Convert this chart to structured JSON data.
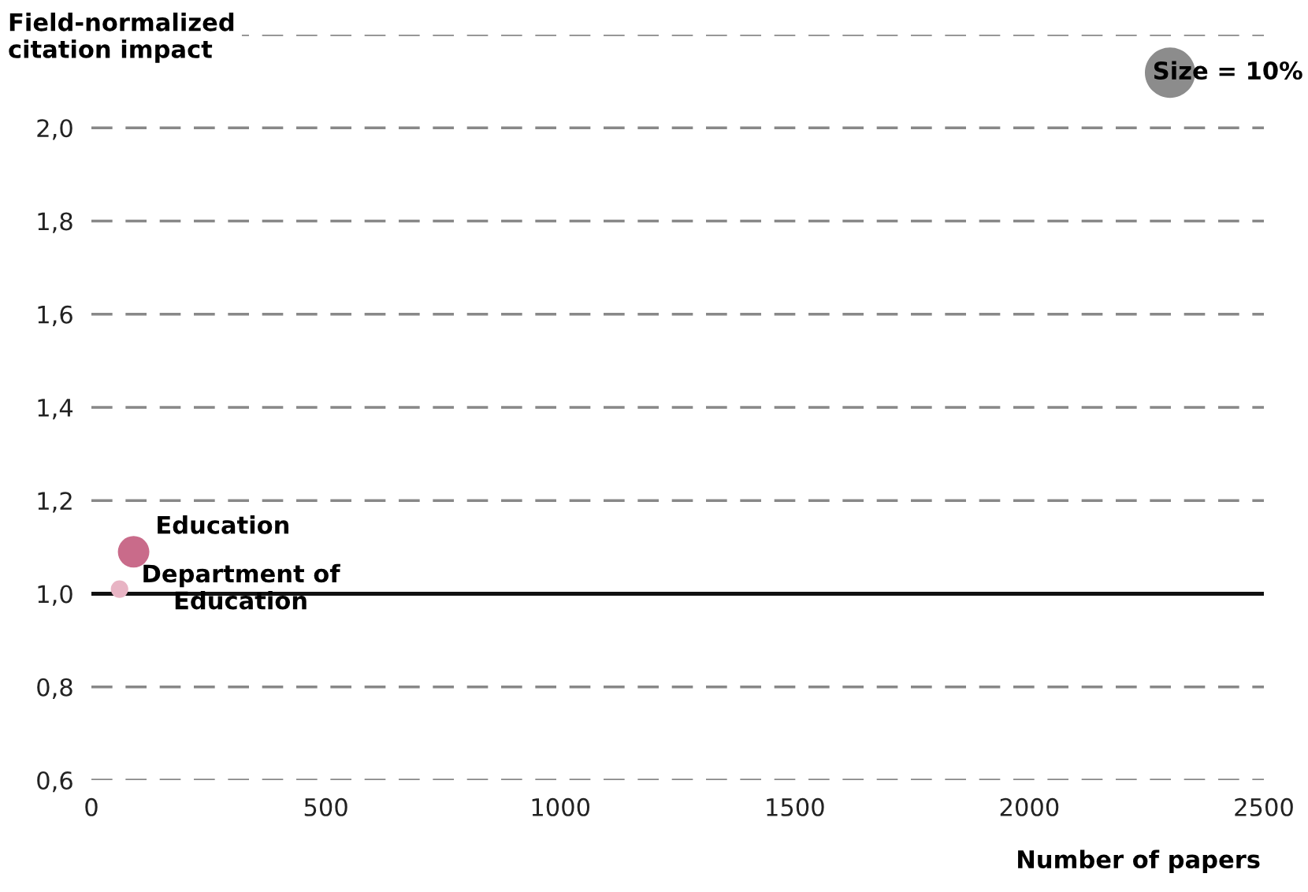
{
  "chart_data": {
    "type": "bubble",
    "xlabel": "Number of papers",
    "ylabel": "Field-normalized\ncitation impact",
    "series": [
      {
        "name": "Education",
        "color": "#c96b8a",
        "x": [
          90
        ],
        "values": [
          1.09
        ],
        "sizes": [
          3.9
        ]
      },
      {
        "name": "Department of\nEducation",
        "color": "#e8b4c4",
        "x": [
          60
        ],
        "values": [
          1.01
        ],
        "sizes": [
          1.2
        ]
      }
    ],
    "size_legend": [
      {
        "value": 10,
        "label": "Size = 10%"
      }
    ],
    "xlim": [
      0,
      2500
    ],
    "xticks": [
      0,
      500,
      1000,
      1500,
      2000,
      2500
    ],
    "ylim": [
      0.6,
      2.2
    ],
    "yticks": [
      {
        "value": 0.6,
        "label": "0,6"
      },
      {
        "value": 0.8,
        "label": "0,8"
      },
      {
        "value": 1.0,
        "label": "1,0"
      },
      {
        "value": 1.2,
        "label": "1,2"
      },
      {
        "value": 1.4,
        "label": "1,4"
      },
      {
        "value": 1.6,
        "label": "1,6"
      },
      {
        "value": 1.8,
        "label": "1,8"
      },
      {
        "value": 2.0,
        "label": "2,0"
      },
      {
        "value": 2.2,
        "label": null
      }
    ],
    "ref_lines": [
      {
        "axis": "y",
        "value": 1.0,
        "color": "#111111",
        "line_style": "solid"
      }
    ],
    "grid": "y",
    "legend": false
  }
}
